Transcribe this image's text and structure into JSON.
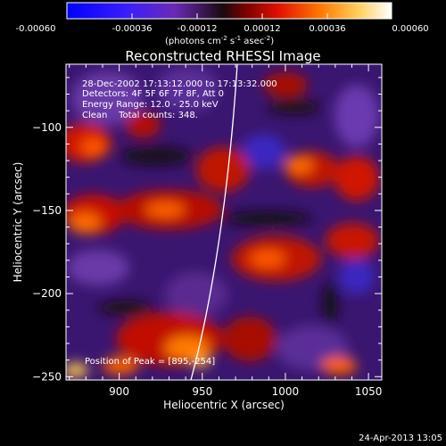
{
  "colorbar": {
    "ticks": [
      "-0.00060",
      "-0.00036",
      "-0.00012",
      "0.00012",
      "0.00036",
      "0.00060"
    ],
    "units_main": "(photons cm",
    "units_exp1": "-2",
    "units_mid": " s",
    "units_exp2": "-1",
    "units_mid2": " asec",
    "units_exp3": "-2",
    "units_close": ")"
  },
  "title": "Reconstructed RHESSI Image",
  "info": {
    "line1": "28-Dec-2002 17:13:12.000 to 17:13:32.000",
    "line2": "Detectors: 4F 5F 6F 7F 8F, Att 0",
    "line3": "Energy Range: 12.0 - 25.0 keV",
    "line4": "Clean    Total counts: 348.",
    "peak": "Position of Peak = [895,-254]"
  },
  "axes": {
    "xlabel": "Heliocentric X (arcsec)",
    "ylabel": "Heliocentric Y (arcsec)",
    "xticks": [
      {
        "label": "900",
        "value": 900
      },
      {
        "label": "950",
        "value": 950
      },
      {
        "label": "1000",
        "value": 1000
      },
      {
        "label": "1050",
        "value": 1050
      }
    ],
    "yticks": [
      {
        "label": "−100",
        "value": -100
      },
      {
        "label": "−150",
        "value": -150
      },
      {
        "label": "−200",
        "value": -200
      },
      {
        "label": "−250",
        "value": -250
      }
    ],
    "xlim": [
      868,
      1058
    ],
    "ylim": [
      -252,
      -62
    ]
  },
  "timestamp": "24-Apr-2013 13:05",
  "colors": {
    "background": "#000000",
    "text": "#ffffff",
    "limb": "#ffffff"
  }
}
